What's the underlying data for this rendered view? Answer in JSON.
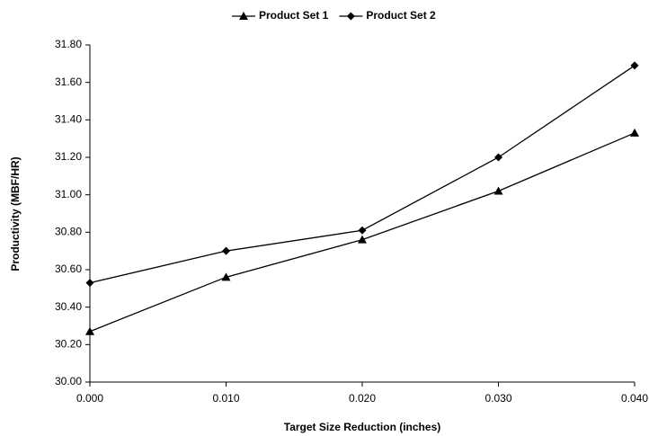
{
  "chart_data": {
    "type": "line",
    "x_label": "Target Size Reduction (inches)",
    "y_label": "Productivity (MBF/HR)",
    "x": [
      0,
      0.01,
      0.02,
      0.03,
      0.04
    ],
    "series": [
      {
        "name": "Product Set 1",
        "color": "#000000",
        "marker": "triangle",
        "values": [
          30.27,
          30.56,
          30.76,
          31.02,
          31.33
        ]
      },
      {
        "name": "Product Set 2",
        "color": "#000000",
        "marker": "diamond",
        "values": [
          30.53,
          30.7,
          30.81,
          31.2,
          31.69
        ]
      }
    ],
    "xlim": [
      0,
      0.04
    ],
    "xticks": [
      {
        "value": 0,
        "label": "0.000"
      },
      {
        "value": 0.01,
        "label": "0.010"
      },
      {
        "value": 0.02,
        "label": "0.020"
      },
      {
        "value": 0.03,
        "label": "0.030"
      },
      {
        "value": 0.04,
        "label": "0.040"
      }
    ],
    "ylim": [
      30,
      31.8
    ],
    "yticks": [
      {
        "value": 30,
        "label": "30.00"
      },
      {
        "value": 30.2,
        "label": "30.20"
      },
      {
        "value": 30.4,
        "label": "30.40"
      },
      {
        "value": 30.6,
        "label": "30.60"
      },
      {
        "value": 30.8,
        "label": "30.80"
      },
      {
        "value": 31,
        "label": "31.00"
      },
      {
        "value": 31.2,
        "label": "31.20"
      },
      {
        "value": 31.4,
        "label": "31.40"
      },
      {
        "value": 31.6,
        "label": "31.60"
      },
      {
        "value": 31.8,
        "label": "31.80"
      }
    ],
    "grid": false,
    "legend": "top"
  }
}
